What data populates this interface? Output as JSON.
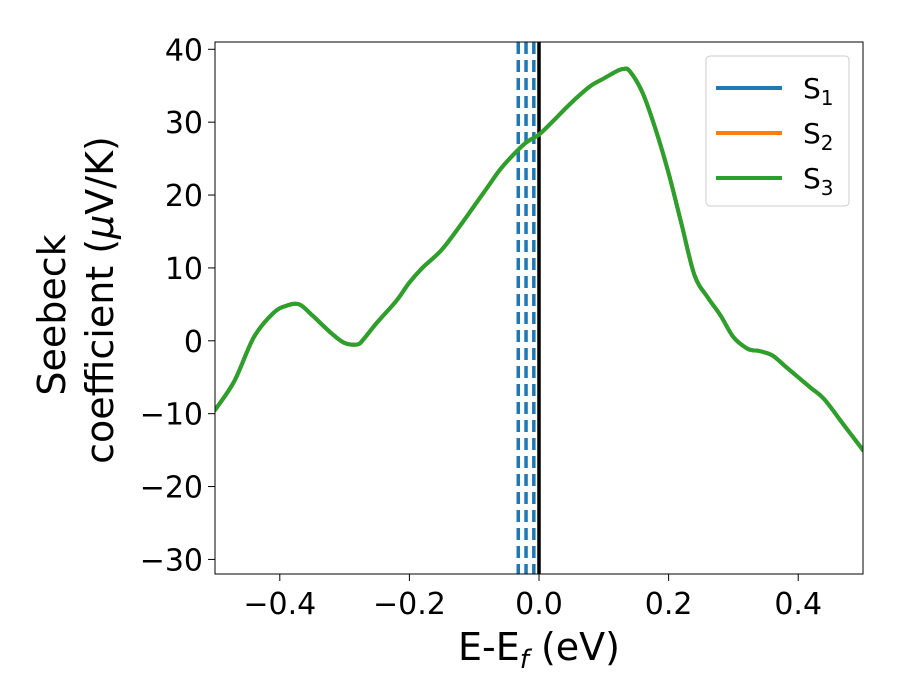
{
  "chart_data": {
    "type": "line",
    "title": "",
    "xlabel": {
      "main": "E-E",
      "sub": "f",
      "unit": " (eV)"
    },
    "ylabel": {
      "line1": "Seebeck",
      "line2": "coefficient  (",
      "mu": "μ",
      "unit": "V/K)"
    },
    "xlim": [
      -0.5,
      0.5
    ],
    "ylim": [
      -32,
      41
    ],
    "x_ticks": [
      -0.4,
      -0.2,
      0.0,
      0.2,
      0.4
    ],
    "x_tick_labels": [
      "−0.4",
      "−0.2",
      "0.0",
      "0.2",
      "0.4"
    ],
    "y_ticks": [
      -30,
      -20,
      -10,
      0,
      10,
      20,
      30,
      40
    ],
    "y_tick_labels": [
      "−30",
      "−20",
      "−10",
      "0",
      "10",
      "20",
      "30",
      "40"
    ],
    "grid": false,
    "legend_placement": "top-right",
    "series": [
      {
        "name": "S",
        "sub": "1",
        "color": "#1f77b4"
      },
      {
        "name": "S",
        "sub": "2",
        "color": "#ff7f0e"
      },
      {
        "name": "S",
        "sub": "3",
        "color": "#2ca02c"
      }
    ],
    "curve": {
      "x": [
        -0.5,
        -0.47,
        -0.44,
        -0.41,
        -0.39,
        -0.37,
        -0.35,
        -0.32,
        -0.3,
        -0.28,
        -0.27,
        -0.25,
        -0.22,
        -0.2,
        -0.18,
        -0.15,
        -0.12,
        -0.1,
        -0.08,
        -0.06,
        -0.04,
        -0.02,
        0.0,
        0.02,
        0.04,
        0.06,
        0.08,
        0.1,
        0.12,
        0.13,
        0.14,
        0.16,
        0.18,
        0.2,
        0.22,
        0.24,
        0.26,
        0.28,
        0.3,
        0.32,
        0.33,
        0.34,
        0.36,
        0.38,
        0.4,
        0.42,
        0.44,
        0.47,
        0.5
      ],
      "y": [
        -9.5,
        -5.5,
        0.5,
        3.8,
        4.8,
        5.0,
        3.5,
        1.0,
        -0.3,
        -0.5,
        0.3,
        2.5,
        5.5,
        8.0,
        10.0,
        12.5,
        16.0,
        18.5,
        21.0,
        23.5,
        25.5,
        27.2,
        28.3,
        30.0,
        31.8,
        33.5,
        35.0,
        36.0,
        37.0,
        37.3,
        37.0,
        34.0,
        29.0,
        23.0,
        16.0,
        9.0,
        6.0,
        3.5,
        0.5,
        -1.0,
        -1.3,
        -1.4,
        -2.0,
        -3.5,
        -5.0,
        -6.5,
        -8.0,
        -11.5,
        -15.0
      ]
    },
    "vertical_lines": {
      "dashed_x": [
        -0.032,
        -0.02,
        -0.008
      ],
      "dashed_color": "#1f77b4",
      "solid_x": 0.0,
      "solid_color": "#000000"
    }
  }
}
